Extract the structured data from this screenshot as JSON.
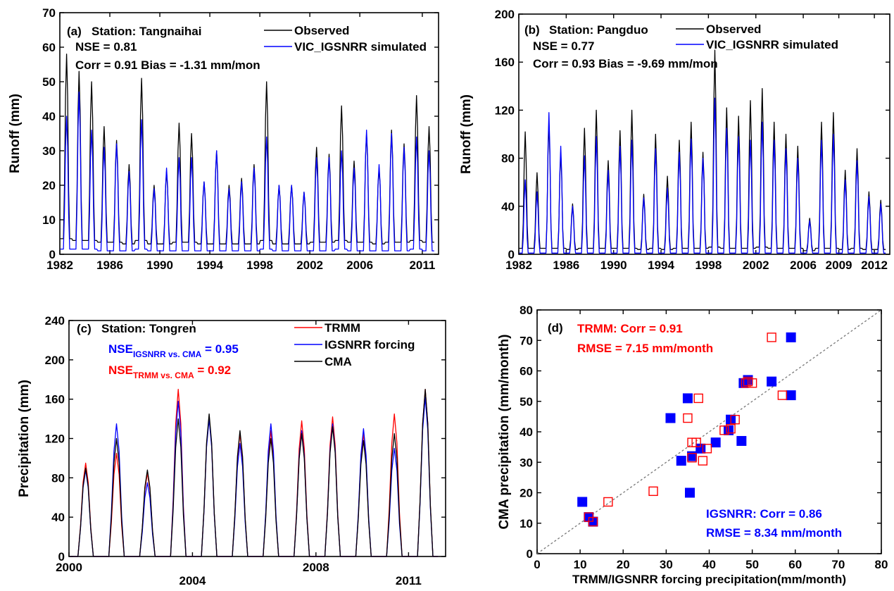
{
  "chart_data": [
    {
      "type": "line",
      "panel_label": "(a)",
      "annotations": [
        "Station: Tangnaihai",
        "NSE = 0.81",
        "Corr = 0.91 Bias = -1.31 mm/mon"
      ],
      "ylabel": "Runoff (mm)",
      "xlabel": "",
      "xlim": [
        1982,
        2012.3
      ],
      "ylim": [
        0,
        70
      ],
      "xticks": [
        1982,
        1986,
        1990,
        1994,
        1998,
        2002,
        2006,
        2011
      ],
      "yticks": [
        0,
        10,
        20,
        30,
        40,
        50,
        60,
        70
      ],
      "grid": false,
      "legend_position": "top-right",
      "series": [
        {
          "name": "Observed",
          "color": "#000000",
          "x": [
            1982,
            1983,
            1984,
            1985,
            1986,
            1987,
            1988,
            1989,
            1990,
            1991,
            1992,
            1993,
            1994,
            1995,
            1996,
            1997,
            1998,
            1999,
            2000,
            2001,
            2002,
            2003,
            2004,
            2005,
            2006,
            2007,
            2008,
            2009,
            2010,
            2011
          ],
          "peak": [
            58,
            53,
            50,
            37,
            33,
            26,
            51,
            20,
            24,
            38,
            35,
            21,
            30,
            20,
            22,
            26,
            50,
            20,
            20,
            18,
            31,
            29,
            43,
            27,
            35,
            25,
            36,
            32,
            46,
            37
          ],
          "base": [
            4.5,
            4,
            4,
            3.5,
            3.5,
            3,
            4,
            3,
            3,
            3.5,
            3.5,
            3,
            3,
            3,
            3,
            3,
            4,
            3,
            3,
            3,
            3.5,
            3.5,
            4,
            3.5,
            3.5,
            3,
            3.5,
            3.5,
            4,
            3.5
          ]
        },
        {
          "name": "VIC_IGSNRR simulated",
          "color": "#0000ff",
          "x": [
            1982,
            1983,
            1984,
            1985,
            1986,
            1987,
            1988,
            1989,
            1990,
            1991,
            1992,
            1993,
            1994,
            1995,
            1996,
            1997,
            1998,
            1999,
            2000,
            2001,
            2002,
            2003,
            2004,
            2005,
            2006,
            2007,
            2008,
            2009,
            2010,
            2011
          ],
          "peak": [
            40,
            47,
            36,
            31,
            32,
            24,
            39,
            19,
            25,
            28,
            28,
            21,
            30,
            19,
            21,
            25,
            34,
            20,
            20,
            18,
            28,
            28,
            30,
            25,
            36,
            26,
            35,
            31,
            34,
            30
          ],
          "base": [
            1.5,
            1.5,
            1.5,
            1,
            1,
            1,
            1.5,
            1,
            1,
            1,
            1,
            1,
            1,
            1,
            1,
            1,
            1.5,
            1,
            1,
            1,
            1,
            1,
            1.5,
            1,
            1,
            1,
            1,
            1,
            1.5,
            1
          ]
        }
      ]
    },
    {
      "type": "line",
      "panel_label": "(b)",
      "annotations": [
        "Station: Pangduo",
        "NSE = 0.77",
        "Corr = 0.93 Bias = -9.69 mm/mon"
      ],
      "ylabel": "Runoff (mm)",
      "xlabel": "",
      "xlim": [
        1982,
        2013.3
      ],
      "ylim": [
        0,
        200
      ],
      "xticks": [
        1982,
        1986,
        1990,
        1994,
        1998,
        2002,
        2006,
        2009,
        2012
      ],
      "yticks": [
        0,
        40,
        80,
        120,
        160,
        200
      ],
      "grid": false,
      "legend_position": "top-right",
      "series": [
        {
          "name": "Observed",
          "color": "#000000",
          "x": [
            1982,
            1983,
            1984,
            1985,
            1986,
            1987,
            1988,
            1989,
            1990,
            1991,
            1992,
            1993,
            1994,
            1995,
            1996,
            1997,
            1998,
            1999,
            2000,
            2001,
            2002,
            2003,
            2004,
            2005,
            2006,
            2007,
            2008,
            2009,
            2010,
            2011,
            2012
          ],
          "peak": [
            102,
            68,
            110,
            85,
            42,
            105,
            120,
            78,
            103,
            120,
            50,
            100,
            65,
            95,
            110,
            85,
            170,
            122,
            115,
            128,
            138,
            110,
            100,
            90,
            30,
            110,
            118,
            70,
            88,
            52,
            45
          ],
          "base": [
            5,
            5,
            5,
            5,
            4,
            5,
            5,
            5,
            5,
            5,
            4,
            5,
            4,
            5,
            5,
            5,
            6,
            5,
            5,
            5,
            6,
            5,
            5,
            5,
            3,
            5,
            5,
            4,
            5,
            4,
            4
          ]
        },
        {
          "name": "VIC_IGSNRR simulated",
          "color": "#0000ff",
          "x": [
            1982,
            1983,
            1984,
            1985,
            1986,
            1987,
            1988,
            1989,
            1990,
            1991,
            1992,
            1993,
            1994,
            1995,
            1996,
            1997,
            1998,
            1999,
            2000,
            2001,
            2002,
            2003,
            2004,
            2005,
            2006,
            2007,
            2008,
            2009,
            2010,
            2011,
            2012
          ],
          "peak": [
            62,
            52,
            118,
            90,
            40,
            82,
            98,
            70,
            90,
            95,
            47,
            88,
            55,
            85,
            96,
            80,
            130,
            105,
            98,
            95,
            110,
            95,
            88,
            80,
            28,
            95,
            100,
            62,
            78,
            48,
            42
          ],
          "base": [
            1,
            1,
            1,
            1,
            1,
            1,
            1,
            1,
            1,
            1,
            1,
            1,
            1,
            1,
            1,
            1,
            1,
            1,
            1,
            1,
            1,
            1,
            1,
            1,
            1,
            1,
            1,
            1,
            1,
            1,
            1
          ]
        }
      ]
    },
    {
      "type": "line",
      "panel_label": "(c)",
      "annotations": [
        "Station: Tongren"
      ],
      "nse_lines": [
        {
          "pre": "NSE",
          "sub": "IGSNRR vs. CMA",
          "post": " = 0.95",
          "color": "#0000ff"
        },
        {
          "pre": "NSE",
          "sub": "TRMM vs. CMA",
          "post": " = 0.92",
          "color": "#ff0000"
        }
      ],
      "ylabel": "Precipitation (mm)",
      "xlabel": "",
      "xlim": [
        2000,
        2012.2
      ],
      "ylim": [
        0,
        240
      ],
      "xticks": [
        2000,
        2004,
        2008,
        2011
      ],
      "yticks": [
        0,
        40,
        80,
        120,
        160,
        200,
        240
      ],
      "grid": false,
      "legend_position": "top-right",
      "series": [
        {
          "name": "TRMM",
          "color": "#ff0000",
          "x": [
            2000,
            2001,
            2002,
            2003,
            2004,
            2005,
            2006,
            2007,
            2008,
            2009,
            2010,
            2011
          ],
          "peak": [
            95,
            105,
            85,
            170,
            142,
            125,
            128,
            138,
            142,
            125,
            145,
            170
          ]
        },
        {
          "name": "IGSNRR forcing",
          "color": "#0000ff",
          "x": [
            2000,
            2001,
            2002,
            2003,
            2004,
            2005,
            2006,
            2007,
            2008,
            2009,
            2010,
            2011
          ],
          "peak": [
            88,
            135,
            75,
            158,
            140,
            115,
            135,
            128,
            135,
            130,
            110,
            162
          ]
        },
        {
          "name": "CMA",
          "color": "#000000",
          "x": [
            2000,
            2001,
            2002,
            2003,
            2004,
            2005,
            2006,
            2007,
            2008,
            2009,
            2010,
            2011
          ],
          "peak": [
            90,
            120,
            88,
            140,
            145,
            128,
            120,
            125,
            132,
            118,
            125,
            170
          ]
        }
      ]
    },
    {
      "type": "scatter",
      "panel_label": "(d)",
      "xlabel": "TRMM/IGSNRR forcing precipitation(mm/month)",
      "ylabel": "CMA precipitation (mm/month)",
      "xlim": [
        0,
        80
      ],
      "ylim": [
        0,
        80
      ],
      "xticks": [
        0,
        10,
        20,
        30,
        40,
        50,
        60,
        70,
        80
      ],
      "yticks": [
        0,
        10,
        20,
        30,
        40,
        50,
        60,
        70,
        80
      ],
      "grid": false,
      "reference_line": "1:1",
      "annotations": [
        {
          "lines": [
            "TRMM: Corr = 0.91",
            "RMSE = 7.15 mm/month"
          ],
          "color": "#ff0000"
        },
        {
          "lines": [
            "IGSNRR: Corr = 0.86",
            "RMSE = 8.34 mm/month"
          ],
          "color": "#0000ff"
        }
      ],
      "series": [
        {
          "name": "IGSNRR",
          "color": "#0000ff",
          "marker": "filled-square",
          "points": [
            [
              10.5,
              17
            ],
            [
              12,
              12
            ],
            [
              13,
              10.5
            ],
            [
              31,
              44.5
            ],
            [
              33.5,
              30.5
            ],
            [
              35,
              51
            ],
            [
              35.5,
              20
            ],
            [
              36,
              32
            ],
            [
              38,
              34.5
            ],
            [
              41.5,
              36.5
            ],
            [
              44.5,
              40.5
            ],
            [
              45,
              44
            ],
            [
              47.5,
              37
            ],
            [
              48,
              56
            ],
            [
              49,
              57
            ],
            [
              54.5,
              56.5
            ],
            [
              59,
              71
            ],
            [
              59,
              52
            ]
          ]
        },
        {
          "name": "TRMM",
          "color": "#ff0000",
          "marker": "open-square",
          "points": [
            [
              12,
              12
            ],
            [
              13,
              10.5
            ],
            [
              16.5,
              17
            ],
            [
              27,
              20.5
            ],
            [
              35,
              44.5
            ],
            [
              36,
              36.5
            ],
            [
              36,
              31.5
            ],
            [
              37,
              36.5
            ],
            [
              37.5,
              51
            ],
            [
              38.5,
              30.5
            ],
            [
              39.5,
              34.5
            ],
            [
              43.5,
              40.5
            ],
            [
              45,
              41
            ],
            [
              46,
              44
            ],
            [
              48.5,
              56
            ],
            [
              49,
              56.5
            ],
            [
              50,
              56
            ],
            [
              54.5,
              71
            ],
            [
              57,
              52
            ]
          ]
        }
      ]
    }
  ]
}
